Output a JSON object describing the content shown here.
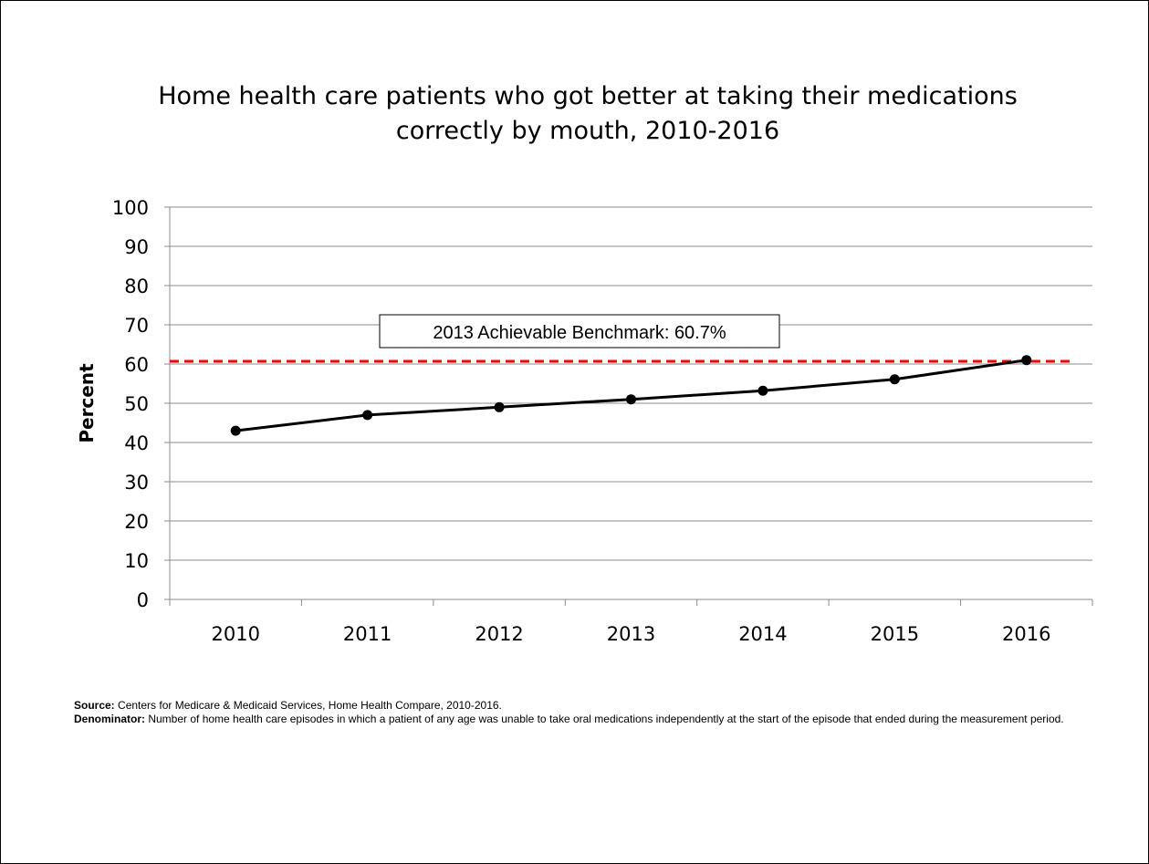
{
  "chart_data": {
    "type": "line",
    "title_lines": [
      "Home health care patients who got better at taking their medications",
      "correctly by mouth, 2010-2016"
    ],
    "ylabel": "Percent",
    "xlabel": "",
    "categories": [
      "2010",
      "2011",
      "2012",
      "2013",
      "2014",
      "2015",
      "2016"
    ],
    "series": [
      {
        "values": [
          43.0,
          47.0,
          49.0,
          51.0,
          53.2,
          56.1,
          61.0
        ]
      }
    ],
    "ylim": [
      0,
      100
    ],
    "yticks": [
      0,
      10,
      20,
      30,
      40,
      50,
      60,
      70,
      80,
      90,
      100
    ],
    "grid": true,
    "legend": "none",
    "benchmark": {
      "value": 60.7,
      "label": "2013 Achievable Benchmark: 60.7%",
      "color": "#ff0000"
    },
    "line_color": "#000000"
  },
  "notes": {
    "source_label": "Source:",
    "source_text": " Centers for Medicare & Medicaid Services, Home Health Compare, 2010-2016.",
    "denominator_label": "Denominator:",
    "denominator_text": " Number of home health care episodes in which a patient of any age was unable to take oral medications independently at the start of the episode that ended during the measurement period."
  }
}
